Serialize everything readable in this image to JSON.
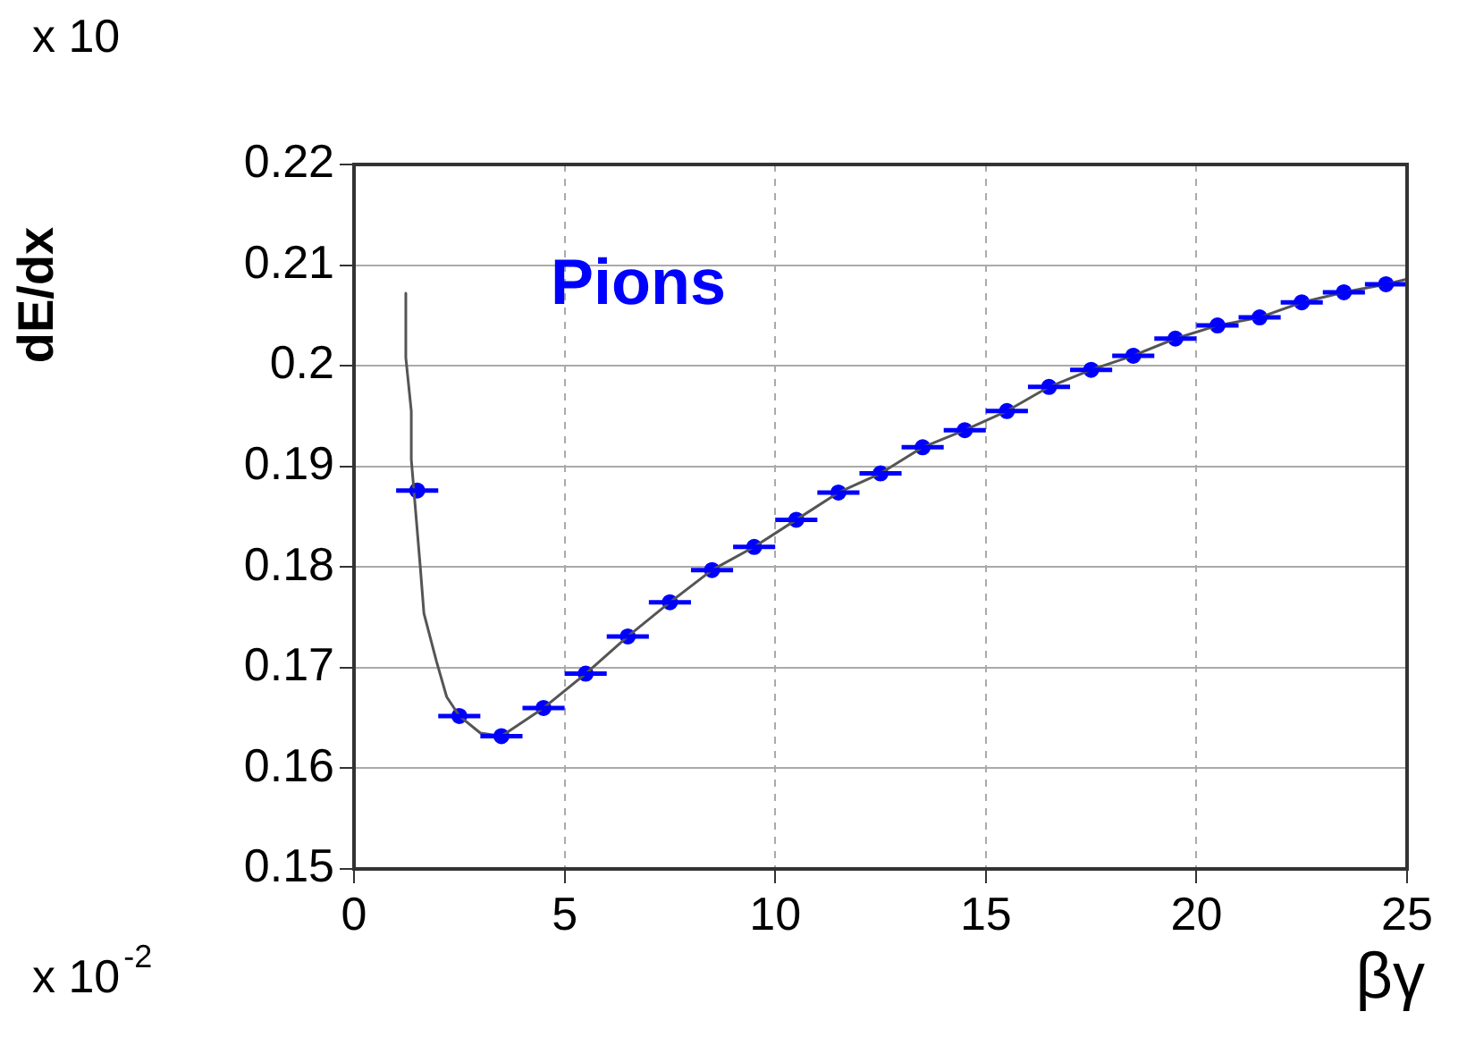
{
  "chart_data": {
    "type": "scatter",
    "xlabel": "βγ",
    "ylabel": "dE/dx",
    "annotations": [
      "x 10",
      "x 10$^{-2}$",
      "Pions"
    ],
    "xlim": [
      0,
      25
    ],
    "ylim": [
      0.15,
      0.22
    ],
    "xticks": [
      0,
      5,
      10,
      15,
      20,
      25
    ],
    "yticks": [
      0.15,
      0.16,
      0.17,
      0.18,
      0.19,
      0.2,
      0.21,
      0.22
    ],
    "grid": true,
    "series": [
      {
        "type": "line",
        "color": "#555555",
        "x": [
          1.23,
          1.23,
          1.36,
          1.36,
          1.57,
          1.66,
          1.96,
          2.2,
          2.5,
          3,
          3.5,
          4.5,
          5.5,
          6.5,
          7.5,
          8.5,
          9.5,
          10.5,
          11.5,
          12.5,
          13.5,
          14.5,
          15.5,
          16.5,
          17.5,
          18.5,
          19.5,
          20.5,
          21.5,
          22.5,
          23.5,
          24.5,
          25
        ],
        "values": [
          0.2072,
          0.2008,
          0.1955,
          0.1907,
          0.1802,
          0.1754,
          0.1706,
          0.1671,
          0.1652,
          0.1635,
          0.1632,
          0.166,
          0.1694,
          0.1731,
          0.1765,
          0.1797,
          0.182,
          0.1847,
          0.1874,
          0.1893,
          0.1919,
          0.1936,
          0.1955,
          0.1979,
          0.1996,
          0.201,
          0.2027,
          0.204,
          0.2048,
          0.2063,
          0.2073,
          0.2081,
          0.2086
        ]
      },
      {
        "type": "scatter",
        "marker": "circle",
        "color": "#0000ff",
        "x": [
          1.5,
          2.5,
          3.5,
          4.5,
          5.5,
          6.5,
          7.5,
          8.5,
          9.5,
          10.5,
          11.5,
          12.5,
          13.5,
          14.5,
          15.5,
          16.5,
          17.5,
          18.5,
          19.5,
          20.5,
          21.5,
          22.5,
          23.5,
          24.5
        ],
        "values": [
          0.1876,
          0.1652,
          0.1632,
          0.166,
          0.1694,
          0.1731,
          0.1765,
          0.1797,
          0.182,
          0.1847,
          0.1874,
          0.1893,
          0.1919,
          0.1936,
          0.1955,
          0.1979,
          0.1996,
          0.201,
          0.2027,
          0.204,
          0.2048,
          0.2063,
          0.2073,
          0.2081
        ],
        "xerrors": [
          0.5,
          0.5,
          0.5,
          0.5,
          0.5,
          0.5,
          0.5,
          0.5,
          0.5,
          0.5,
          0.5,
          0.5,
          0.5,
          0.5,
          0.5,
          0.5,
          0.5,
          0.5,
          0.5,
          0.5,
          0.5,
          0.5,
          0.5,
          0.5
        ]
      }
    ]
  }
}
